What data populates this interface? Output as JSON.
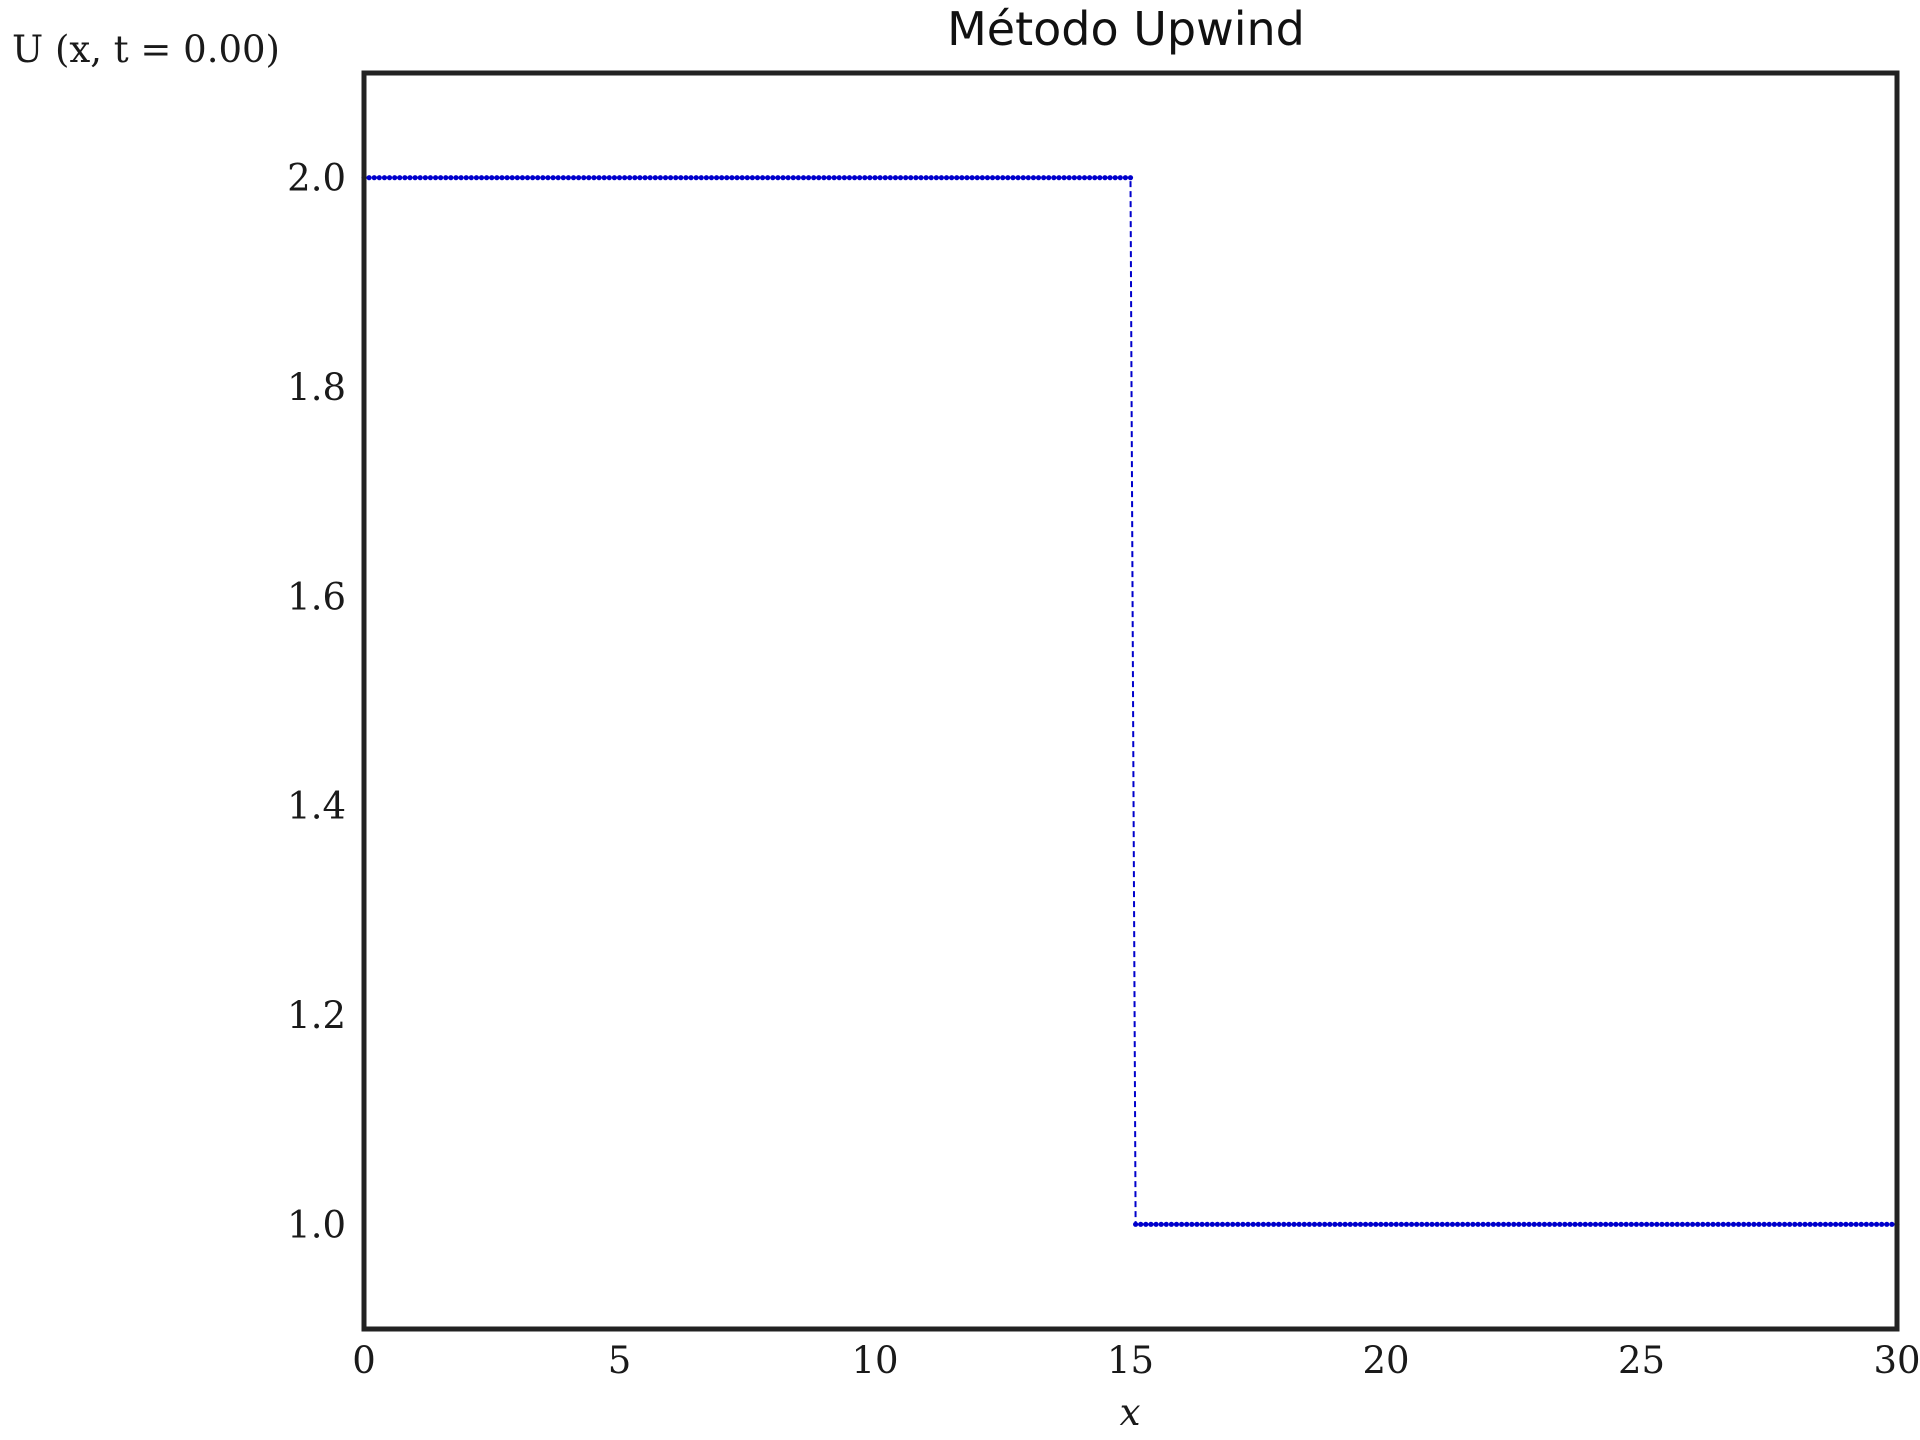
{
  "chart_data": {
    "type": "line",
    "title": "Método Upwind",
    "xlabel": "x",
    "ylabel": "U (x, t = 0.00)",
    "xlim": [
      0,
      30
    ],
    "ylim": [
      0.9,
      2.1
    ],
    "x_ticks": [
      0,
      5,
      10,
      15,
      20,
      25,
      30
    ],
    "x_tick_labels": [
      "0",
      "5",
      "10",
      "15",
      "20",
      "25",
      "30"
    ],
    "y_ticks": [
      1.0,
      1.2,
      1.4,
      1.6,
      1.8,
      2.0
    ],
    "y_tick_labels": [
      "1.0",
      "1.2",
      "1.4",
      "1.6",
      "1.8",
      "2.0"
    ],
    "grid": false,
    "legend": "none",
    "series": [
      {
        "color": "#0000cc",
        "line_style": "dashed",
        "marker": "dot",
        "x_start": 0,
        "x_end": 30,
        "points": 301,
        "step_x": 15.1,
        "value_left": 2.0,
        "value_right": 1.0
      }
    ]
  }
}
